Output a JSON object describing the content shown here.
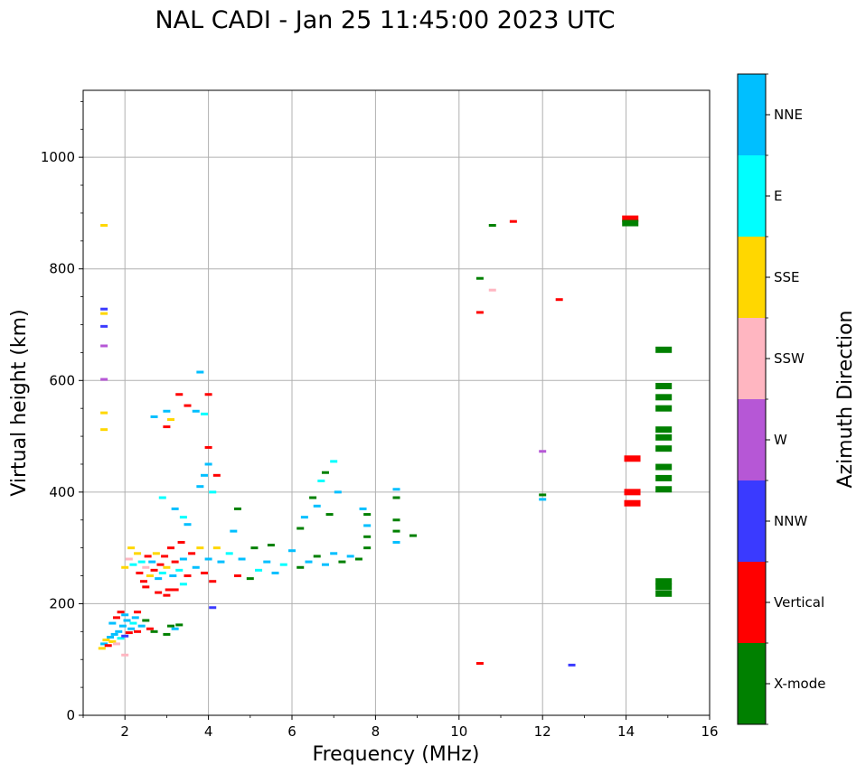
{
  "chart_data": {
    "type": "scatter",
    "title": "NAL CADI - Jan 25 11:45:00 2023 UTC",
    "xlabel": "Frequency (MHz)",
    "ylabel": "Virtual height (km)",
    "colorbar_label": "Azimuth Direction",
    "xlim": [
      1,
      16
    ],
    "ylim": [
      0,
      1120
    ],
    "xticks": [
      "2",
      "4",
      "6",
      "8",
      "10",
      "12",
      "14",
      "16"
    ],
    "xtick_values": [
      2,
      4,
      6,
      8,
      10,
      12,
      14,
      16
    ],
    "yticks": [
      "0",
      "200",
      "400",
      "600",
      "800",
      "1000"
    ],
    "ytick_values": [
      0,
      200,
      400,
      600,
      800,
      1000
    ],
    "grid": true,
    "categories": [
      {
        "name": "X-mode",
        "color": "#008000"
      },
      {
        "name": "Vertical",
        "color": "#ff0000"
      },
      {
        "name": "NNW",
        "color": "#3a3aff"
      },
      {
        "name": "W",
        "color": "#b657d6"
      },
      {
        "name": "SSW",
        "color": "#ffb6c1"
      },
      {
        "name": "SSE",
        "color": "#ffd700"
      },
      {
        "name": "E",
        "color": "#00ffff"
      },
      {
        "name": "NNE",
        "color": "#00bfff"
      }
    ],
    "points": [
      {
        "f": 1.5,
        "h": 878,
        "c": "SSE"
      },
      {
        "f": 1.5,
        "h": 728,
        "c": "NNW"
      },
      {
        "f": 1.5,
        "h": 720,
        "c": "SSE"
      },
      {
        "f": 1.5,
        "h": 697,
        "c": "NNW"
      },
      {
        "f": 1.5,
        "h": 662,
        "c": "W"
      },
      {
        "f": 1.5,
        "h": 602,
        "c": "W"
      },
      {
        "f": 1.5,
        "h": 542,
        "c": "SSE"
      },
      {
        "f": 1.5,
        "h": 512,
        "c": "SSE"
      },
      {
        "f": 1.45,
        "h": 120,
        "c": "SSE"
      },
      {
        "f": 1.5,
        "h": 128,
        "c": "NNE"
      },
      {
        "f": 1.55,
        "h": 135,
        "c": "SSE"
      },
      {
        "f": 1.6,
        "h": 125,
        "c": "Vertical"
      },
      {
        "f": 1.65,
        "h": 140,
        "c": "NNE"
      },
      {
        "f": 1.7,
        "h": 132,
        "c": "SSE"
      },
      {
        "f": 1.75,
        "h": 145,
        "c": "NNE"
      },
      {
        "f": 1.8,
        "h": 128,
        "c": "SSW"
      },
      {
        "f": 1.85,
        "h": 150,
        "c": "NNE"
      },
      {
        "f": 1.9,
        "h": 138,
        "c": "E"
      },
      {
        "f": 1.95,
        "h": 160,
        "c": "NNE"
      },
      {
        "f": 2.0,
        "h": 142,
        "c": "NNW"
      },
      {
        "f": 2.05,
        "h": 170,
        "c": "NNE"
      },
      {
        "f": 2.1,
        "h": 148,
        "c": "Vertical"
      },
      {
        "f": 2.15,
        "h": 155,
        "c": "NNE"
      },
      {
        "f": 2.2,
        "h": 165,
        "c": "E"
      },
      {
        "f": 2.25,
        "h": 175,
        "c": "NNE"
      },
      {
        "f": 2.3,
        "h": 150,
        "c": "Vertical"
      },
      {
        "f": 2.4,
        "h": 160,
        "c": "NNE"
      },
      {
        "f": 2.5,
        "h": 170,
        "c": "X-mode"
      },
      {
        "f": 2.6,
        "h": 155,
        "c": "Vertical"
      },
      {
        "f": 2.7,
        "h": 150,
        "c": "X-mode"
      },
      {
        "f": 1.7,
        "h": 165,
        "c": "NNE"
      },
      {
        "f": 1.8,
        "h": 175,
        "c": "Vertical"
      },
      {
        "f": 1.9,
        "h": 185,
        "c": "Vertical"
      },
      {
        "f": 2.0,
        "h": 180,
        "c": "NNE"
      },
      {
        "f": 2.0,
        "h": 108,
        "c": "SSW"
      },
      {
        "f": 2.3,
        "h": 185,
        "c": "Vertical"
      },
      {
        "f": 3.0,
        "h": 145,
        "c": "X-mode"
      },
      {
        "f": 3.1,
        "h": 160,
        "c": "X-mode"
      },
      {
        "f": 3.2,
        "h": 155,
        "c": "NNE"
      },
      {
        "f": 3.3,
        "h": 162,
        "c": "X-mode"
      },
      {
        "f": 2.0,
        "h": 265,
        "c": "SSE"
      },
      {
        "f": 2.1,
        "h": 280,
        "c": "SSW"
      },
      {
        "f": 2.15,
        "h": 300,
        "c": "SSE"
      },
      {
        "f": 2.2,
        "h": 270,
        "c": "E"
      },
      {
        "f": 2.3,
        "h": 290,
        "c": "SSE"
      },
      {
        "f": 2.35,
        "h": 255,
        "c": "Vertical"
      },
      {
        "f": 2.4,
        "h": 275,
        "c": "E"
      },
      {
        "f": 2.45,
        "h": 240,
        "c": "Vertical"
      },
      {
        "f": 2.5,
        "h": 265,
        "c": "SSW"
      },
      {
        "f": 2.55,
        "h": 285,
        "c": "Vertical"
      },
      {
        "f": 2.6,
        "h": 250,
        "c": "SSE"
      },
      {
        "f": 2.65,
        "h": 275,
        "c": "NNE"
      },
      {
        "f": 2.7,
        "h": 260,
        "c": "Vertical"
      },
      {
        "f": 2.75,
        "h": 290,
        "c": "SSE"
      },
      {
        "f": 2.8,
        "h": 245,
        "c": "NNE"
      },
      {
        "f": 2.85,
        "h": 270,
        "c": "Vertical"
      },
      {
        "f": 2.9,
        "h": 255,
        "c": "E"
      },
      {
        "f": 2.95,
        "h": 285,
        "c": "Vertical"
      },
      {
        "f": 3.0,
        "h": 265,
        "c": "SSE"
      },
      {
        "f": 3.05,
        "h": 225,
        "c": "Vertical"
      },
      {
        "f": 3.1,
        "h": 300,
        "c": "Vertical"
      },
      {
        "f": 3.15,
        "h": 250,
        "c": "NNE"
      },
      {
        "f": 3.2,
        "h": 275,
        "c": "Vertical"
      },
      {
        "f": 3.3,
        "h": 260,
        "c": "E"
      },
      {
        "f": 3.35,
        "h": 310,
        "c": "Vertical"
      },
      {
        "f": 3.4,
        "h": 280,
        "c": "NNE"
      },
      {
        "f": 3.5,
        "h": 250,
        "c": "Vertical"
      },
      {
        "f": 3.6,
        "h": 290,
        "c": "Vertical"
      },
      {
        "f": 3.7,
        "h": 265,
        "c": "NNE"
      },
      {
        "f": 3.8,
        "h": 300,
        "c": "SSE"
      },
      {
        "f": 3.9,
        "h": 255,
        "c": "Vertical"
      },
      {
        "f": 4.0,
        "h": 280,
        "c": "NNE"
      },
      {
        "f": 2.5,
        "h": 230,
        "c": "Vertical"
      },
      {
        "f": 2.8,
        "h": 220,
        "c": "Vertical"
      },
      {
        "f": 3.0,
        "h": 215,
        "c": "Vertical"
      },
      {
        "f": 3.2,
        "h": 225,
        "c": "Vertical"
      },
      {
        "f": 3.4,
        "h": 235,
        "c": "E"
      },
      {
        "f": 4.1,
        "h": 240,
        "c": "Vertical"
      },
      {
        "f": 4.1,
        "h": 193,
        "c": "NNW"
      },
      {
        "f": 4.2,
        "h": 300,
        "c": "SSE"
      },
      {
        "f": 4.3,
        "h": 275,
        "c": "NNE"
      },
      {
        "f": 4.5,
        "h": 290,
        "c": "E"
      },
      {
        "f": 4.7,
        "h": 250,
        "c": "Vertical"
      },
      {
        "f": 4.8,
        "h": 280,
        "c": "NNE"
      },
      {
        "f": 5.0,
        "h": 245,
        "c": "X-mode"
      },
      {
        "f": 5.1,
        "h": 300,
        "c": "X-mode"
      },
      {
        "f": 5.2,
        "h": 260,
        "c": "E"
      },
      {
        "f": 5.4,
        "h": 275,
        "c": "NNE"
      },
      {
        "f": 5.5,
        "h": 305,
        "c": "X-mode"
      },
      {
        "f": 5.6,
        "h": 255,
        "c": "NNE"
      },
      {
        "f": 5.8,
        "h": 270,
        "c": "E"
      },
      {
        "f": 6.0,
        "h": 295,
        "c": "NNE"
      },
      {
        "f": 6.2,
        "h": 265,
        "c": "X-mode"
      },
      {
        "f": 6.4,
        "h": 275,
        "c": "NNE"
      },
      {
        "f": 6.6,
        "h": 285,
        "c": "X-mode"
      },
      {
        "f": 6.8,
        "h": 270,
        "c": "NNE"
      },
      {
        "f": 7.0,
        "h": 290,
        "c": "NNE"
      },
      {
        "f": 7.2,
        "h": 275,
        "c": "X-mode"
      },
      {
        "f": 7.4,
        "h": 285,
        "c": "NNE"
      },
      {
        "f": 7.6,
        "h": 280,
        "c": "X-mode"
      },
      {
        "f": 7.8,
        "h": 300,
        "c": "X-mode"
      },
      {
        "f": 7.8,
        "h": 320,
        "c": "X-mode"
      },
      {
        "f": 7.8,
        "h": 340,
        "c": "NNE"
      },
      {
        "f": 7.8,
        "h": 360,
        "c": "X-mode"
      },
      {
        "f": 7.7,
        "h": 370,
        "c": "NNE"
      },
      {
        "f": 8.5,
        "h": 310,
        "c": "NNE"
      },
      {
        "f": 8.5,
        "h": 330,
        "c": "X-mode"
      },
      {
        "f": 8.5,
        "h": 350,
        "c": "X-mode"
      },
      {
        "f": 8.5,
        "h": 390,
        "c": "X-mode"
      },
      {
        "f": 8.5,
        "h": 405,
        "c": "NNE"
      },
      {
        "f": 8.9,
        "h": 322,
        "c": "X-mode"
      },
      {
        "f": 6.5,
        "h": 390,
        "c": "X-mode"
      },
      {
        "f": 6.6,
        "h": 375,
        "c": "NNE"
      },
      {
        "f": 6.7,
        "h": 420,
        "c": "E"
      },
      {
        "f": 6.8,
        "h": 435,
        "c": "X-mode"
      },
      {
        "f": 7.0,
        "h": 455,
        "c": "E"
      },
      {
        "f": 7.1,
        "h": 400,
        "c": "NNE"
      },
      {
        "f": 6.9,
        "h": 360,
        "c": "X-mode"
      },
      {
        "f": 6.2,
        "h": 335,
        "c": "X-mode"
      },
      {
        "f": 6.3,
        "h": 355,
        "c": "NNE"
      },
      {
        "f": 4.7,
        "h": 370,
        "c": "X-mode"
      },
      {
        "f": 4.6,
        "h": 330,
        "c": "NNE"
      },
      {
        "f": 3.8,
        "h": 410,
        "c": "NNE"
      },
      {
        "f": 3.9,
        "h": 430,
        "c": "NNE"
      },
      {
        "f": 4.0,
        "h": 450,
        "c": "NNE"
      },
      {
        "f": 4.1,
        "h": 400,
        "c": "E"
      },
      {
        "f": 4.2,
        "h": 430,
        "c": "Vertical"
      },
      {
        "f": 4.0,
        "h": 480,
        "c": "Vertical"
      },
      {
        "f": 3.9,
        "h": 540,
        "c": "E"
      },
      {
        "f": 3.7,
        "h": 545,
        "c": "NNE"
      },
      {
        "f": 3.5,
        "h": 555,
        "c": "Vertical"
      },
      {
        "f": 3.3,
        "h": 575,
        "c": "Vertical"
      },
      {
        "f": 3.1,
        "h": 530,
        "c": "SSE"
      },
      {
        "f": 3.0,
        "h": 545,
        "c": "NNE"
      },
      {
        "f": 3.8,
        "h": 615,
        "c": "NNE"
      },
      {
        "f": 4.0,
        "h": 575,
        "c": "Vertical"
      },
      {
        "f": 2.7,
        "h": 535,
        "c": "NNE"
      },
      {
        "f": 3.0,
        "h": 517,
        "c": "Vertical"
      },
      {
        "f": 3.2,
        "h": 370,
        "c": "NNE"
      },
      {
        "f": 3.4,
        "h": 355,
        "c": "E"
      },
      {
        "f": 2.9,
        "h": 390,
        "c": "E"
      },
      {
        "f": 3.5,
        "h": 342,
        "c": "NNE"
      },
      {
        "f": 10.5,
        "h": 783,
        "c": "X-mode"
      },
      {
        "f": 10.5,
        "h": 722,
        "c": "Vertical"
      },
      {
        "f": 10.8,
        "h": 762,
        "c": "SSW"
      },
      {
        "f": 10.8,
        "h": 878,
        "c": "X-mode"
      },
      {
        "f": 11.3,
        "h": 885,
        "c": "Vertical"
      },
      {
        "f": 12.4,
        "h": 745,
        "c": "Vertical"
      },
      {
        "f": 12.0,
        "h": 473,
        "c": "W"
      },
      {
        "f": 12.0,
        "h": 395,
        "c": "X-mode"
      },
      {
        "f": 12.0,
        "h": 387,
        "c": "NNE"
      },
      {
        "f": 10.5,
        "h": 93,
        "c": "Vertical"
      },
      {
        "f": 12.7,
        "h": 90,
        "c": "NNW"
      },
      {
        "f": 14.1,
        "h": 890,
        "c": "Vertical"
      },
      {
        "f": 14.1,
        "h": 882,
        "c": "X-mode"
      },
      {
        "f": 14.15,
        "h": 460,
        "c": "Vertical"
      },
      {
        "f": 14.15,
        "h": 400,
        "c": "Vertical"
      },
      {
        "f": 14.15,
        "h": 380,
        "c": "Vertical"
      },
      {
        "f": 14.9,
        "h": 655,
        "c": "X-mode"
      },
      {
        "f": 14.9,
        "h": 590,
        "c": "X-mode"
      },
      {
        "f": 14.9,
        "h": 570,
        "c": "X-mode"
      },
      {
        "f": 14.9,
        "h": 550,
        "c": "X-mode"
      },
      {
        "f": 14.9,
        "h": 512,
        "c": "X-mode"
      },
      {
        "f": 14.9,
        "h": 498,
        "c": "X-mode"
      },
      {
        "f": 14.9,
        "h": 478,
        "c": "X-mode"
      },
      {
        "f": 14.9,
        "h": 445,
        "c": "X-mode"
      },
      {
        "f": 14.9,
        "h": 425,
        "c": "X-mode"
      },
      {
        "f": 14.9,
        "h": 405,
        "c": "X-mode"
      },
      {
        "f": 14.9,
        "h": 240,
        "c": "X-mode"
      },
      {
        "f": 14.9,
        "h": 230,
        "c": "X-mode"
      },
      {
        "f": 14.9,
        "h": 218,
        "c": "X-mode"
      }
    ]
  }
}
